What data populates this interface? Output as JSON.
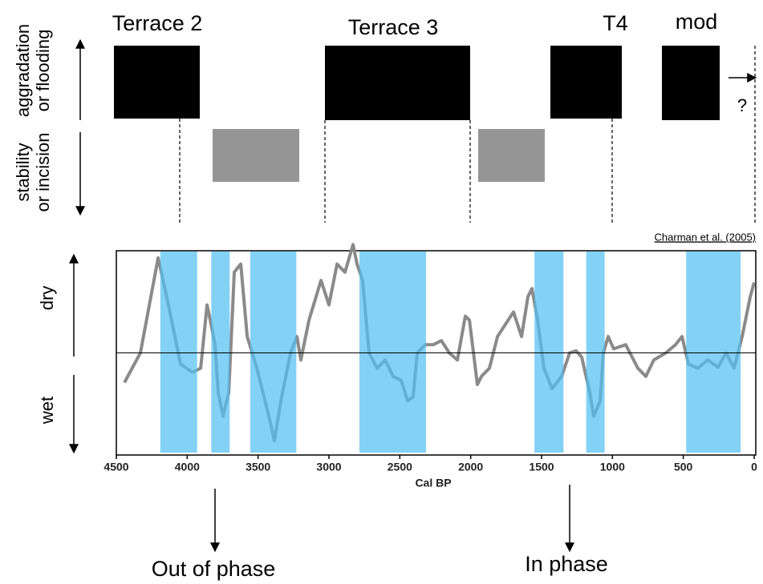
{
  "top_panel": {
    "up_label": [
      "aggradation",
      "or flooding"
    ],
    "down_label": [
      "stability",
      "or incision"
    ],
    "terraces": [
      "Terrace 2",
      "Terrace 3",
      "T4",
      "mod"
    ],
    "question": "?"
  },
  "chart_data": {
    "type": "line",
    "source": "Charman et al. (2005)",
    "xlabel": "Cal BP",
    "ylabel_up": "dry",
    "ylabel_down": "wet",
    "xlim": [
      4500,
      0
    ],
    "xticks": [
      4500,
      4000,
      3500,
      3000,
      2500,
      2000,
      1500,
      1000,
      500,
      0
    ],
    "ylim": [
      -1,
      1
    ],
    "hline": 0,
    "band_color": "#55bff2",
    "bands": [
      [
        4190,
        3930
      ],
      [
        3830,
        3700
      ],
      [
        3555,
        3230
      ],
      [
        2785,
        2315
      ],
      [
        1550,
        1345
      ],
      [
        1185,
        1055
      ],
      [
        480,
        95
      ]
    ],
    "x": [
      4443,
      4330,
      4205,
      4132,
      4047,
      3962,
      3905,
      3860,
      3837,
      3804,
      3781,
      3747,
      3707,
      3668,
      3622,
      3577,
      3509,
      3424,
      3385,
      3339,
      3271,
      3226,
      3198,
      3141,
      3056,
      3000,
      2943,
      2887,
      2830,
      2802,
      2762,
      2717,
      2660,
      2604,
      2547,
      2490,
      2445,
      2406,
      2377,
      2321,
      2264,
      2207,
      2151,
      2094,
      2038,
      2009,
      1953,
      1924,
      1868,
      1811,
      1755,
      1698,
      1641,
      1596,
      1568,
      1528,
      1483,
      1426,
      1358,
      1302,
      1257,
      1217,
      1160,
      1132,
      1087,
      1064,
      1030,
      991,
      906,
      821,
      764,
      708,
      623,
      555,
      509,
      464,
      396,
      328,
      255,
      198,
      142,
      85,
      28,
      0
    ],
    "series": [
      {
        "color": "#8a8a8a",
        "values": [
          -0.29,
          0.0,
          0.93,
          0.47,
          -0.11,
          -0.19,
          -0.15,
          0.47,
          0.32,
          0.08,
          -0.39,
          -0.62,
          -0.39,
          0.79,
          0.87,
          0.16,
          -0.15,
          -0.62,
          -0.86,
          -0.47,
          0.0,
          0.16,
          -0.07,
          0.32,
          0.71,
          0.47,
          0.87,
          0.79,
          1.06,
          0.87,
          0.71,
          0.0,
          -0.15,
          -0.07,
          -0.23,
          -0.27,
          -0.47,
          -0.43,
          0.0,
          0.08,
          0.08,
          0.12,
          0.0,
          -0.07,
          0.36,
          0.32,
          -0.31,
          -0.23,
          -0.15,
          0.16,
          0.28,
          0.4,
          0.16,
          0.55,
          0.63,
          0.32,
          -0.15,
          -0.35,
          -0.23,
          0.0,
          0.02,
          -0.04,
          -0.39,
          -0.62,
          -0.47,
          0.0,
          0.16,
          0.04,
          0.08,
          -0.15,
          -0.23,
          -0.07,
          0.0,
          0.08,
          0.16,
          -0.11,
          -0.15,
          -0.07,
          -0.14,
          0.0,
          -0.15,
          0.16,
          0.55,
          0.69
        ]
      }
    ]
  },
  "annotations": {
    "out_of_phase": "Out of phase",
    "in_phase": "In phase"
  }
}
